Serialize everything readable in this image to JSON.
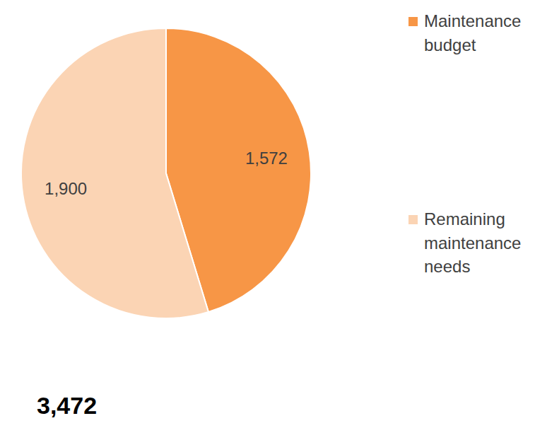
{
  "chart_data": {
    "type": "pie",
    "categories": [
      "Maintenance budget",
      "Remaining maintenance needs"
    ],
    "values": [
      1572,
      1900
    ],
    "value_labels": [
      "1,572",
      "1,900"
    ],
    "colors": [
      "#f79646",
      "#fbd4b4"
    ],
    "data_labels": true,
    "legend": "right",
    "total": {
      "value": 3472,
      "label": "3,472"
    }
  }
}
